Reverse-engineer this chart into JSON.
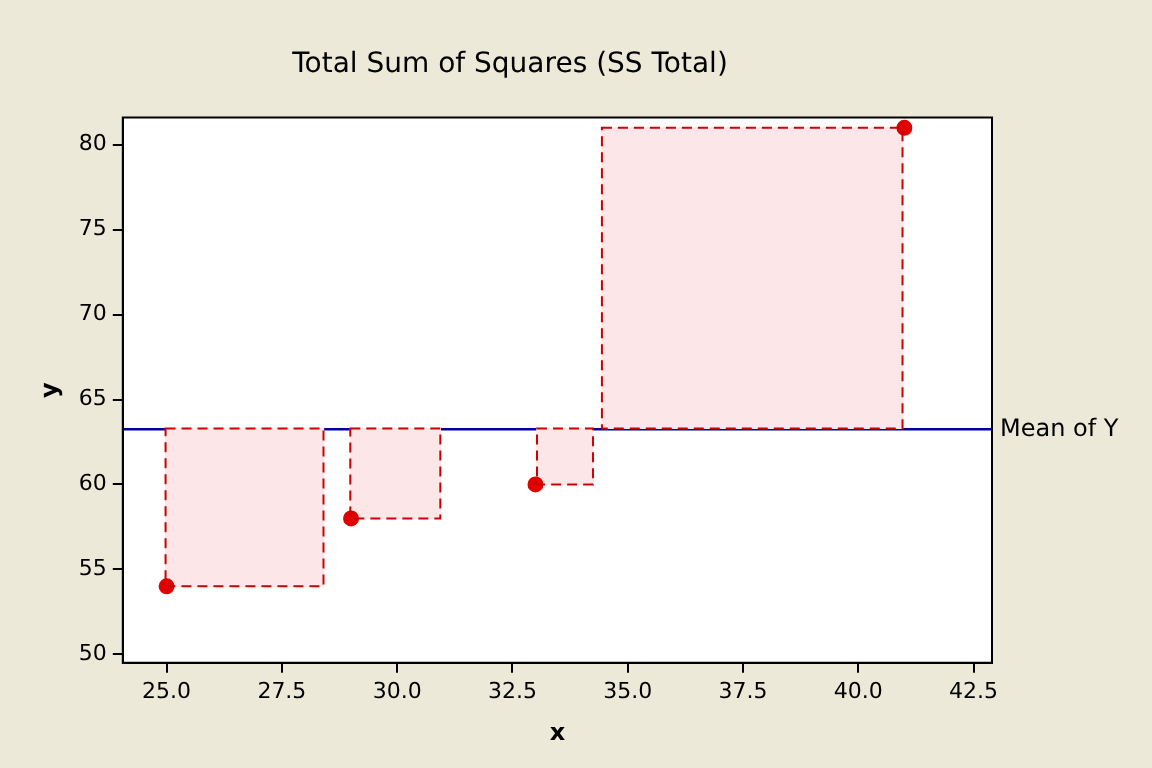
{
  "chart_data": {
    "type": "scatter",
    "title": "Total Sum of Squares (SS Total)",
    "xlabel": "x",
    "ylabel": "y",
    "x": [
      25,
      29,
      33,
      41
    ],
    "series": [
      {
        "color": "#e00000",
        "values": [
          54,
          58,
          60,
          81
        ]
      },
      {
        "type": "bar",
        "color": "#fde6e8",
        "x": [
          26.69,
          29.96,
          33.64,
          37.7
        ],
        "base": [
          54,
          58,
          60,
          63.3
        ],
        "values": [
          9.3,
          5.3,
          3.3,
          17.7
        ]
      }
    ],
    "xlim": [
      24.05,
      42.9
    ],
    "ylim": [
      49.5,
      81.6
    ],
    "xticks": [
      {
        "value": 25,
        "label": "25.0"
      },
      {
        "value": 27.5,
        "label": "27.5"
      },
      {
        "value": 30,
        "label": "30.0"
      },
      {
        "value": 32.5,
        "label": "32.5"
      },
      {
        "value": 35,
        "label": "35.0"
      },
      {
        "value": 37.5,
        "label": "37.5"
      },
      {
        "value": 40,
        "label": "40.0"
      },
      {
        "value": 42.5,
        "label": "42.5"
      }
    ],
    "yticks": [
      50,
      55,
      60,
      65,
      70,
      75,
      80
    ],
    "ref_lines": [
      {
        "axis": "y",
        "value": 63.25,
        "label": "Mean of Y",
        "color": "#0000a0"
      }
    ],
    "marker": "circle",
    "grid": false,
    "legend": false
  }
}
